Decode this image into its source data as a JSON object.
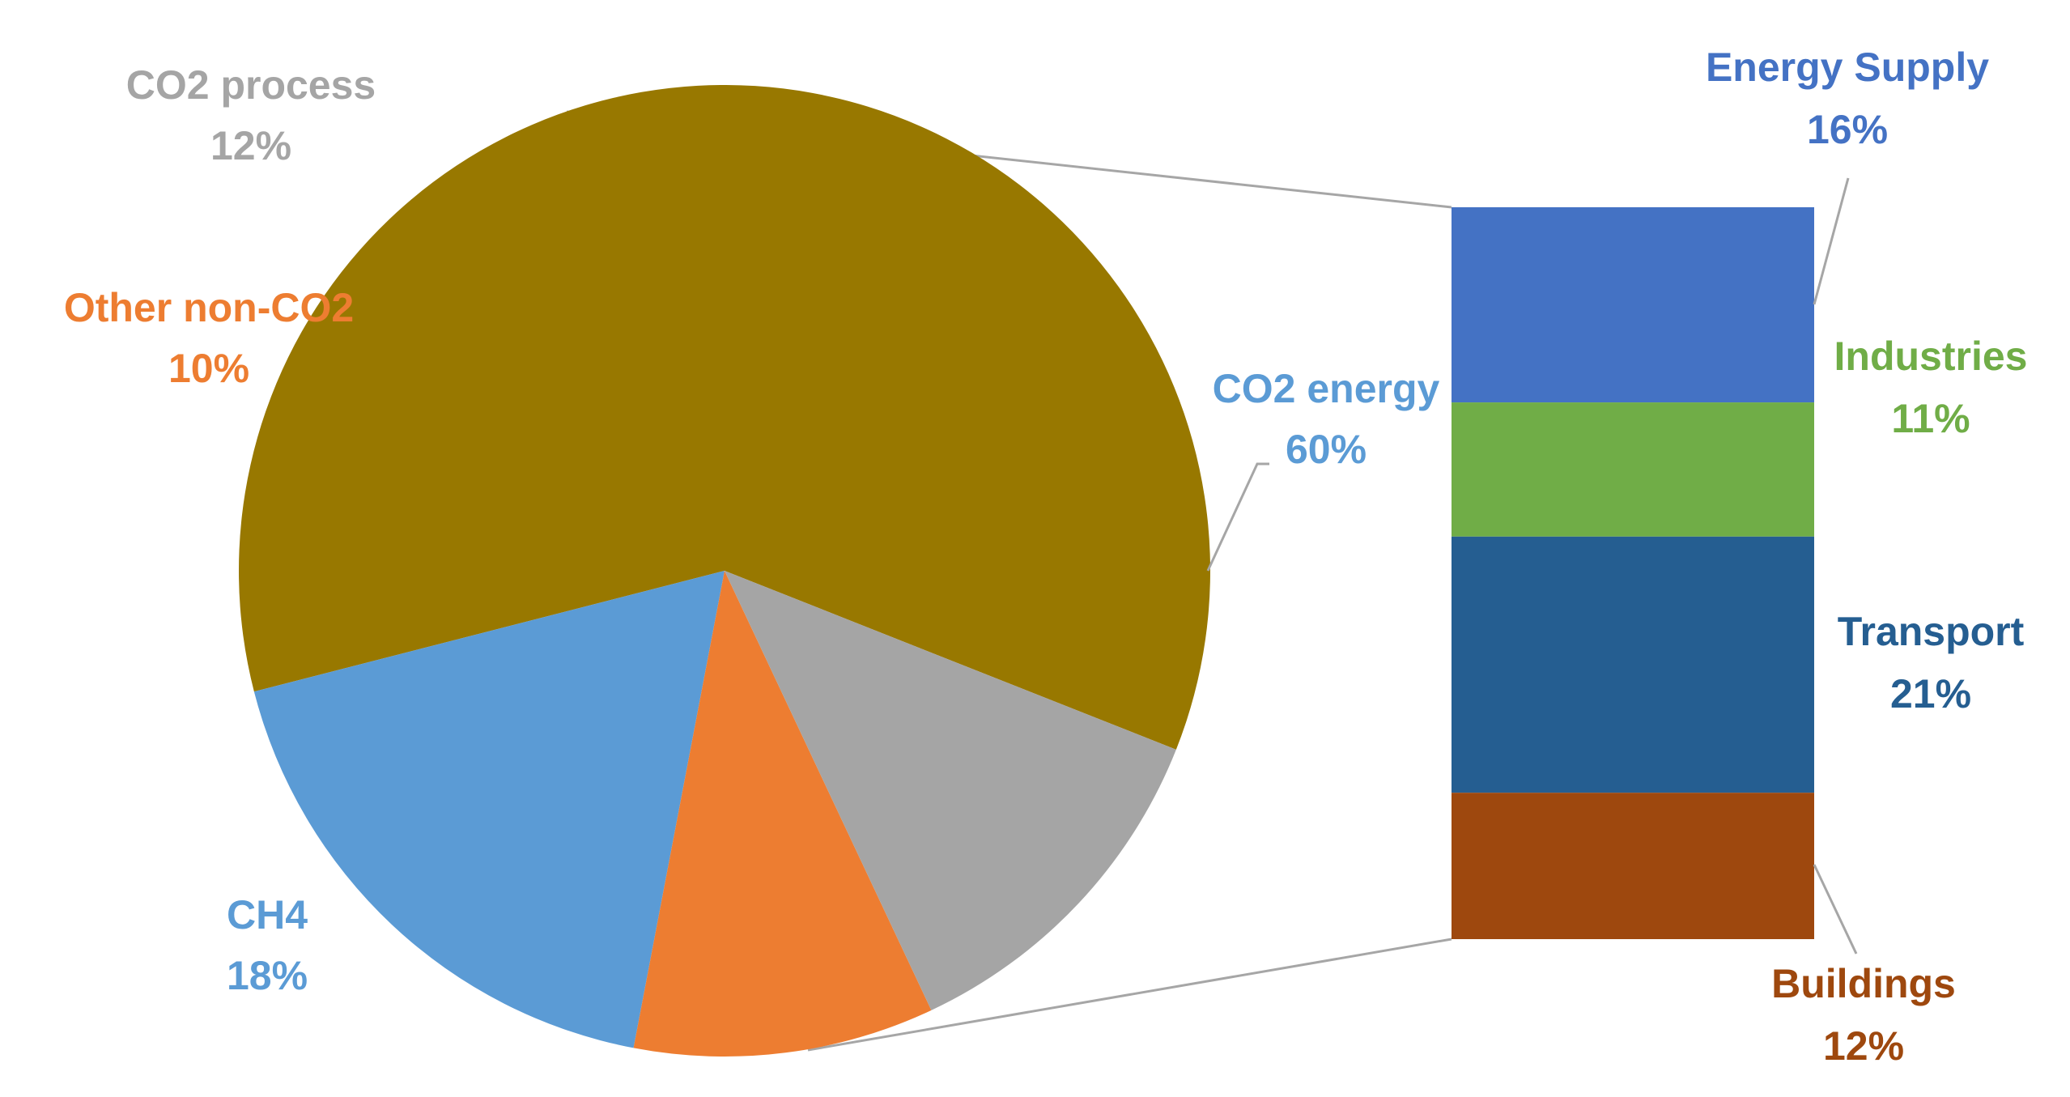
{
  "chart_data": {
    "type": "pie",
    "variant": "bar-of-pie",
    "title": "",
    "pie": {
      "slices": [
        {
          "name": "CO2 energy",
          "value": 60,
          "label": "60%",
          "color": "#987800",
          "label_color": "#5B9BD5"
        },
        {
          "name": "CH4",
          "value": 18,
          "label": "18%",
          "color": "#5B9BD5",
          "label_color": "#5B9BD5"
        },
        {
          "name": "Other non-CO2",
          "value": 10,
          "label": "10%",
          "color": "#ED7D31",
          "label_color": "#ED7D31"
        },
        {
          "name": "CO2 process",
          "value": 12,
          "label": "12%",
          "color": "#A5A5A5",
          "label_color": "#A5A5A5"
        }
      ]
    },
    "bar": {
      "expands": "CO2 energy",
      "segments": [
        {
          "name": "Energy Supply",
          "value": 16,
          "label": "16%",
          "color": "#4472C4",
          "label_color": "#4472C4"
        },
        {
          "name": "Industries",
          "value": 11,
          "label": "11%",
          "color": "#70AD47",
          "label_color": "#70AD47"
        },
        {
          "name": "Transport",
          "value": 21,
          "label": "21%",
          "color": "#255E91",
          "label_color": "#255E91"
        },
        {
          "name": "Buildings",
          "value": 12,
          "label": "12%",
          "color": "#9E480E",
          "label_color": "#9E480E"
        }
      ]
    },
    "connector_color": "#A6A6A6"
  }
}
